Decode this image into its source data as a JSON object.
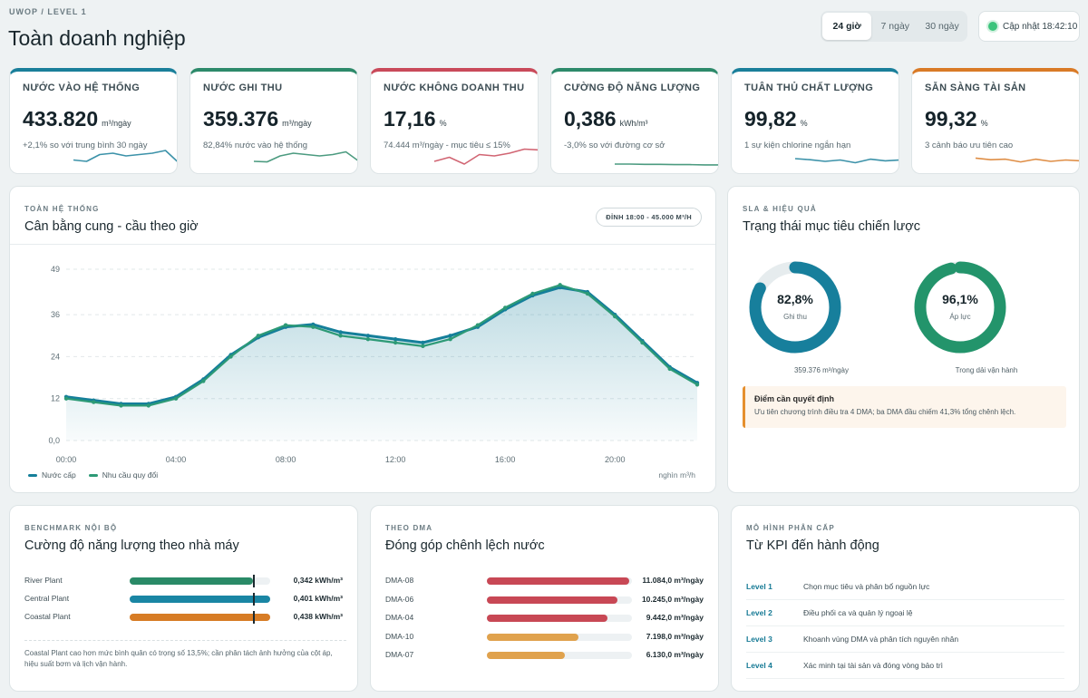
{
  "header": {
    "breadcrumb": "UWOP / LEVEL 1",
    "title": "Toàn doanh nghiệp",
    "ranges": [
      "24 giờ",
      "7 ngày",
      "30 ngày"
    ],
    "active_range": "24 giờ",
    "update_label": "Cập nhật 18:42:10"
  },
  "kpis": [
    {
      "title": "NƯỚC VÀO HỆ THỐNG",
      "value": "433.820",
      "unit": "m³/ngày",
      "sub": "+2,1% so với trung bình 30 ngày",
      "color": "#1a7f9a",
      "spark": [
        0.35,
        0.3,
        0.55,
        0.6,
        0.5,
        0.55,
        0.6,
        0.7,
        0.25
      ]
    },
    {
      "title": "NƯỚC GHI THU",
      "value": "359.376",
      "unit": "m³/ngày",
      "sub": "82,84% nước vào hệ thống",
      "color": "#2d8a6a",
      "spark": [
        0.3,
        0.28,
        0.5,
        0.6,
        0.55,
        0.5,
        0.55,
        0.65,
        0.3
      ]
    },
    {
      "title": "NƯỚC KHÔNG DOANH THU",
      "value": "17,16",
      "unit": "%",
      "sub": "74.444 m³/ngày - mục tiêu ≤ 15%",
      "color": "#c94a5a",
      "spark": [
        0.3,
        0.45,
        0.2,
        0.55,
        0.5,
        0.6,
        0.75,
        0.72
      ]
    },
    {
      "title": "CƯỜNG ĐỘ NĂNG LƯỢNG",
      "value": "0,386",
      "unit": "kWh/m³",
      "sub": "-3,0% so với đường cơ sở",
      "color": "#2d8a6a",
      "spark": [
        0.2,
        0.2,
        0.19,
        0.19,
        0.18,
        0.18,
        0.17,
        0.17
      ]
    },
    {
      "title": "TUÂN THỦ CHẤT LƯỢNG",
      "value": "99,82",
      "unit": "%",
      "sub": "1 sự kiện chlorine ngắn hạn",
      "color": "#1a7f9a",
      "spark": [
        0.4,
        0.36,
        0.3,
        0.35,
        0.25,
        0.38,
        0.32,
        0.35
      ]
    },
    {
      "title": "SẴN SÀNG TÀI SẢN",
      "value": "99,32",
      "unit": "%",
      "sub": "3 cảnh báo ưu tiên cao",
      "color": "#d97a26",
      "spark": [
        0.42,
        0.36,
        0.38,
        0.28,
        0.38,
        0.3,
        0.35,
        0.32
      ]
    }
  ],
  "balance": {
    "eyebrow": "TOÀN HỆ THỐNG",
    "title": "Cân bằng cung - cầu theo giờ",
    "peak": "ĐỈNH 18:00 - 45.000 M³/H",
    "unit_note": "nghìn m³/h"
  },
  "chart_data": {
    "type": "line",
    "x": [
      "00:00",
      "01:00",
      "02:00",
      "03:00",
      "04:00",
      "05:00",
      "06:00",
      "07:00",
      "08:00",
      "09:00",
      "10:00",
      "11:00",
      "12:00",
      "13:00",
      "14:00",
      "15:00",
      "16:00",
      "17:00",
      "18:00",
      "19:00",
      "20:00",
      "21:00",
      "22:00",
      "23:00"
    ],
    "x_tick_labels": [
      "00:00",
      "04:00",
      "08:00",
      "12:00",
      "16:00",
      "20:00"
    ],
    "y_tick_labels": [
      "0,0",
      "12",
      "24",
      "36",
      "49"
    ],
    "ylim": [
      0,
      49
    ],
    "series": [
      {
        "name": "Nước cấp",
        "color": "#157f9a",
        "values": [
          12.5,
          11.5,
          10.5,
          10.5,
          12.5,
          17.5,
          24.5,
          29.5,
          32.5,
          33.2,
          31.0,
          30.0,
          29.0,
          28.0,
          30.0,
          32.5,
          37.5,
          41.5,
          43.8,
          42.5,
          36.0,
          28.5,
          21.0,
          16.5
        ]
      },
      {
        "name": "Nhu cầu quy đổi",
        "color": "#2d9a76",
        "values": [
          12.0,
          11.0,
          10.0,
          10.0,
          12.0,
          17.0,
          24.0,
          30.0,
          33.0,
          32.5,
          30.0,
          29.0,
          28.0,
          27.0,
          29.0,
          33.0,
          38.0,
          42.0,
          44.5,
          42.0,
          35.5,
          28.0,
          20.5,
          16.0
        ]
      }
    ]
  },
  "sla": {
    "eyebrow": "SLA & HIỆU QUẢ",
    "title": "Trạng thái mục tiêu chiến lược",
    "donuts": [
      {
        "value_text": "82,8%",
        "fraction": 0.828,
        "label": "Ghi thu",
        "caption": "359.376 m³/ngày",
        "color": "#177f9c"
      },
      {
        "value_text": "96,1%",
        "fraction": 0.961,
        "label": "Áp lực",
        "caption": "Trong dải vận hành",
        "color": "#23946b"
      }
    ],
    "decision_title": "Điểm cần quyết định",
    "decision_body": "Ưu tiên chương trình điều tra 4 DMA; ba DMA đầu chiếm 41,3% tổng chênh lệch."
  },
  "benchmark": {
    "eyebrow": "BENCHMARK NỘI BỘ",
    "title": "Cường độ năng lượng theo nhà máy",
    "rows": [
      {
        "name": "River Plant",
        "value": "0,342 kWh/m³",
        "fraction": 0.88,
        "target": 0.88,
        "color": "#2a8a67"
      },
      {
        "name": "Central Plant",
        "value": "0,401 kWh/m³",
        "fraction": 1.0,
        "target": 0.88,
        "color": "#1a86a4"
      },
      {
        "name": "Coastal Plant",
        "value": "0,438 kWh/m³",
        "fraction": 1.0,
        "target": 0.88,
        "color": "#d77c25"
      }
    ],
    "note": "Coastal Plant cao hơn mức bình quân có trọng số 13,5%; cần phân tách ảnh hưởng của cột áp, hiệu suất bơm và lịch vận hành."
  },
  "dma": {
    "eyebrow": "THEO DMA",
    "title": "Đóng góp chênh lệch nước",
    "rows": [
      {
        "name": "DMA-08",
        "value": "11.084,0 m³/ngày",
        "fraction": 0.98,
        "color": "#c84855"
      },
      {
        "name": "DMA-06",
        "value": "10.245,0 m³/ngày",
        "fraction": 0.9,
        "color": "#c84855"
      },
      {
        "name": "DMA-04",
        "value": "9.442,0 m³/ngày",
        "fraction": 0.83,
        "color": "#c84855"
      },
      {
        "name": "DMA-10",
        "value": "7.198,0 m³/ngày",
        "fraction": 0.63,
        "color": "#e0a24d"
      },
      {
        "name": "DMA-07",
        "value": "6.130,0 m³/ngày",
        "fraction": 0.54,
        "color": "#e0a24d"
      }
    ]
  },
  "levels": {
    "eyebrow": "MÔ HÌNH PHÂN CẤP",
    "title": "Từ KPI đến hành động",
    "rows": [
      {
        "level": "Level 1",
        "text": "Chọn mục tiêu và phân bổ nguồn lực"
      },
      {
        "level": "Level 2",
        "text": "Điều phối ca và quản lý ngoại lệ"
      },
      {
        "level": "Level 3",
        "text": "Khoanh vùng DMA và phân tích nguyên nhân"
      },
      {
        "level": "Level 4",
        "text": "Xác minh tại tài sản và đóng vòng bảo trì"
      }
    ]
  }
}
